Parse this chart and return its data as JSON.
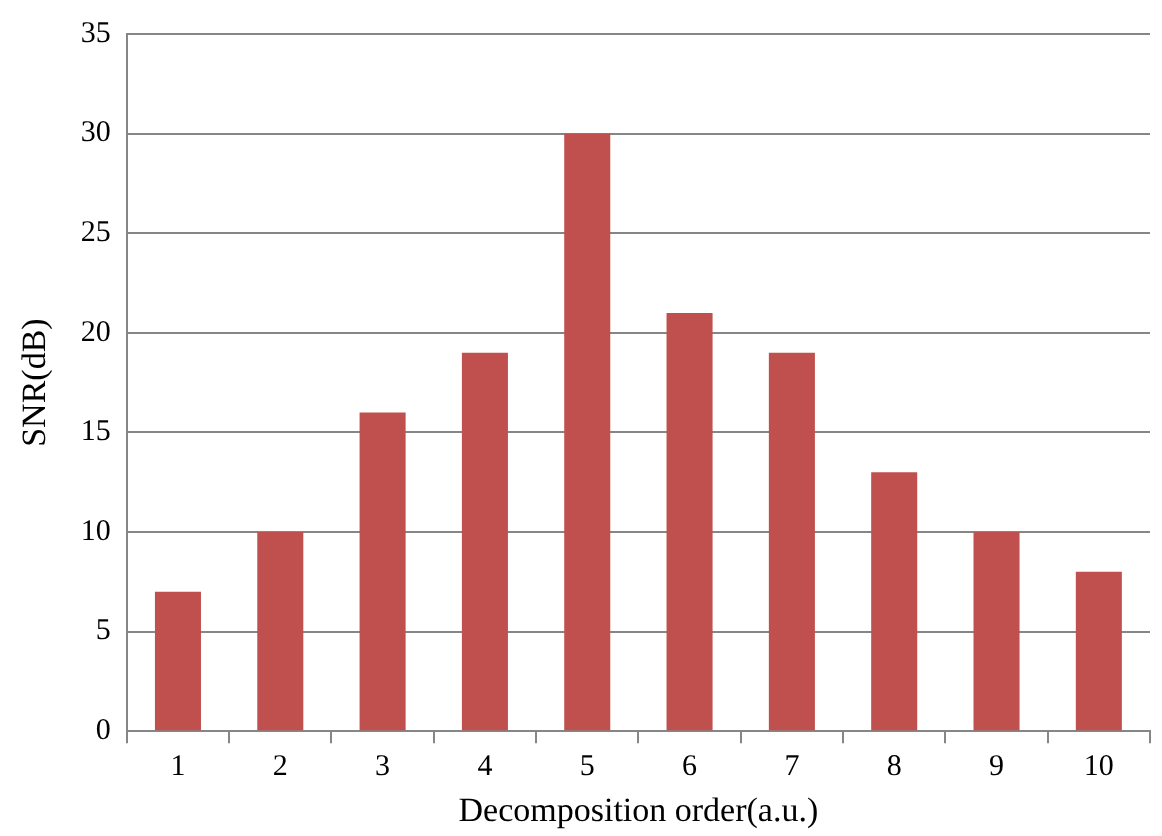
{
  "chart_data": {
    "type": "bar",
    "xlabel": "Decomposition order(a.u.)",
    "ylabel": "SNR(dB)",
    "categories": [
      "1",
      "2",
      "3",
      "4",
      "5",
      "6",
      "7",
      "8",
      "9",
      "10"
    ],
    "values": [
      7,
      10,
      16,
      19,
      30,
      21,
      19,
      13,
      10,
      8
    ],
    "color": "#c0504d",
    "ylim": [
      0,
      35
    ],
    "yticks": [
      0,
      5,
      10,
      15,
      20,
      25,
      30,
      35
    ],
    "grid": "y",
    "legend": false
  }
}
